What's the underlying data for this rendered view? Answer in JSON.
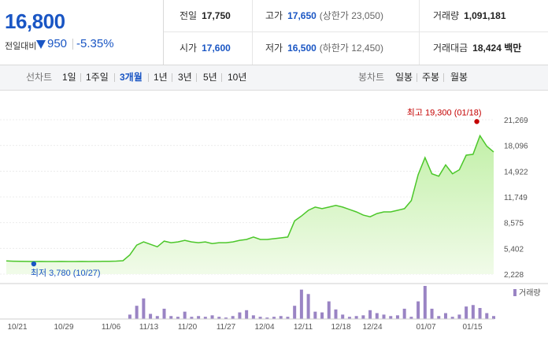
{
  "summary": {
    "price": "16,800",
    "change_label": "전일대비",
    "change_value": "950",
    "change_pct": "-5.35%",
    "rows": [
      [
        {
          "label": "전일",
          "value": "17,750",
          "color": "black",
          "sub": ""
        },
        {
          "label": "고가",
          "value": "17,650",
          "color": "blue",
          "sub": "(상한가 23,050)"
        },
        {
          "label": "거래량",
          "value": "1,091,181",
          "color": "black",
          "sub": ""
        }
      ],
      [
        {
          "label": "시가",
          "value": "17,600",
          "color": "blue",
          "sub": ""
        },
        {
          "label": "저가",
          "value": "16,500",
          "color": "blue",
          "sub": "(하한가 12,450)"
        },
        {
          "label": "거래대금",
          "value": "18,424 백만",
          "color": "black",
          "sub": ""
        }
      ]
    ]
  },
  "toolbar": {
    "line_label": "선차트",
    "line_periods": [
      "1일",
      "1주일",
      "3개월",
      "1년",
      "3년",
      "5년",
      "10년"
    ],
    "active_period": "3개월",
    "candle_label": "봉차트",
    "candle_periods": [
      "일봉",
      "주봉",
      "월봉"
    ]
  },
  "colors": {
    "price_blue": "#1a56c4",
    "high_red": "#c40000",
    "line_green": "#4cc72a",
    "area_top": "#c2f0a8",
    "area_bottom": "#f1fbe9",
    "volume_bar": "#9a84c4"
  },
  "chart_data": {
    "type": "area",
    "y_ticks": [
      "21,269",
      "18,096",
      "14,922",
      "11,749",
      "8,575",
      "5,402",
      "2,228"
    ],
    "ylim": [
      2228,
      21269
    ],
    "x_ticks": [
      "10/21",
      "10/29",
      "11/06",
      "11/13",
      "11/20",
      "11/27",
      "12/04",
      "12/11",
      "12/18",
      "12/24",
      "01/07",
      "01/15"
    ],
    "high_annotation": "최고 19,300 (01/18)",
    "low_annotation": "최저 3,780 (10/27)",
    "high_value": 19300,
    "low_value": 3780,
    "volume_legend": "거래량",
    "price": [
      3850,
      3820,
      3800,
      3790,
      3780,
      3790,
      3780,
      3780,
      3790,
      3780,
      3780,
      3790,
      3780,
      3790,
      3800,
      3810,
      3830,
      3880,
      4600,
      5800,
      6200,
      5900,
      5600,
      6300,
      6100,
      6200,
      6400,
      6200,
      6100,
      6200,
      6000,
      6100,
      6100,
      6200,
      6400,
      6500,
      6800,
      6500,
      6500,
      6600,
      6700,
      6800,
      8800,
      9400,
      10100,
      10500,
      10300,
      10500,
      10700,
      10500,
      10200,
      9900,
      9500,
      9300,
      9700,
      9900,
      9900,
      10100,
      10300,
      11300,
      14500,
      16600,
      14600,
      14300,
      15700,
      14600,
      15100,
      16900,
      17000,
      19300,
      18000,
      17300
    ],
    "volume": [
      0,
      0,
      0,
      0,
      0,
      0,
      0,
      0,
      0,
      0,
      0,
      0,
      0,
      0,
      0,
      0,
      0,
      0,
      6,
      18,
      28,
      7,
      4,
      14,
      4,
      3,
      10,
      3,
      4,
      3,
      5,
      3,
      2,
      4,
      9,
      12,
      5,
      3,
      2,
      3,
      4,
      3,
      18,
      40,
      34,
      10,
      9,
      24,
      13,
      6,
      3,
      4,
      5,
      12,
      8,
      6,
      4,
      5,
      14,
      3,
      24,
      45,
      14,
      4,
      8,
      3,
      6,
      17,
      19,
      15,
      8,
      4
    ],
    "volume_max": 45
  }
}
